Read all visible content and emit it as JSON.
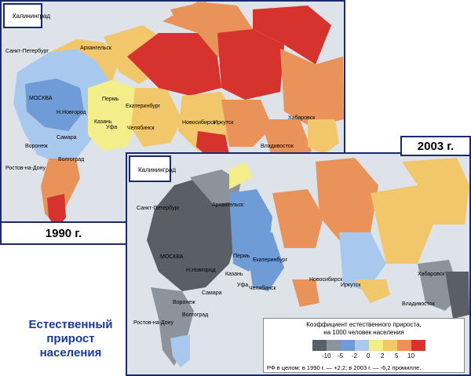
{
  "map1990": {
    "year_label": "1990 г.",
    "inset_label": "Калининград",
    "cities": [
      "Санкт-Петербург",
      "Архангельск",
      "МОСКВА",
      "Н.Новгород",
      "Воронеж",
      "Самара",
      "Волгоград",
      "Ростов-на-Дону",
      "Пермь",
      "Казань",
      "Уфа",
      "Екатеринбург",
      "Челябинск",
      "Новосибирск",
      "Иркутск",
      "Хабаровск",
      "Владивосток"
    ]
  },
  "map2003": {
    "year_label": "2003 г.",
    "inset_label": "Калининград",
    "cities": [
      "Санкт-Петербург",
      "Архангельск",
      "МОСКВА",
      "Н.Новгород",
      "Воронеж",
      "Самара",
      "Волгоград",
      "Ростов-на-Дону",
      "Пермь",
      "Казань",
      "Уфа",
      "Екатеринбург",
      "Челябинск",
      "Новосибирск",
      "Иркутск",
      "Хабаровск",
      "Владивосток"
    ]
  },
  "caption": {
    "line1": "Естественный",
    "line2": "прирост",
    "line3": "населения"
  },
  "legend": {
    "title_line1": "Коэффициент естественного прироста,",
    "title_line2": "на 1000 человек населения",
    "ticks": [
      "-10",
      "-5",
      "-2",
      "0",
      "2",
      "5",
      "10"
    ],
    "colors": [
      "#5a5f66",
      "#8c939b",
      "#6f9bd6",
      "#a9c8ee",
      "#f4ee8a",
      "#f2c66a",
      "#e9935a",
      "#d6322e"
    ],
    "note": "РФ в целом: в 1990 г. — +2,2; в 2003 г. — -6,2 промилле."
  }
}
